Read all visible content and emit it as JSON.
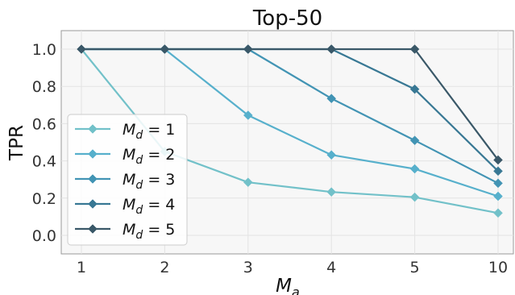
{
  "chart_data": {
    "type": "line",
    "title": "Top-50",
    "xlabel": "M_a",
    "ylabel": "TPR",
    "x_categories": [
      "1",
      "2",
      "3",
      "4",
      "5",
      "10"
    ],
    "ylim": [
      -0.1,
      1.1
    ],
    "yticks": [
      "0.0",
      "0.2",
      "0.4",
      "0.6",
      "0.8",
      "1.0"
    ],
    "grid": true,
    "legend_position": "lower-left",
    "series": [
      {
        "name": "M_d = 1",
        "legend_base": "M",
        "legend_sub": "d",
        "legend_rhs": " = 1",
        "color": "#72c1c9",
        "values": [
          1.0,
          0.45,
          0.285,
          0.233,
          0.205,
          0.12
        ]
      },
      {
        "name": "M_d = 2",
        "legend_base": "M",
        "legend_sub": "d",
        "legend_rhs": " = 2",
        "color": "#57b0cc",
        "values": [
          1.0,
          1.0,
          0.645,
          0.432,
          0.357,
          0.21
        ]
      },
      {
        "name": "M_d = 3",
        "legend_base": "M",
        "legend_sub": "d",
        "legend_rhs": " = 3",
        "color": "#4294b4",
        "values": [
          1.0,
          1.0,
          1.0,
          0.735,
          0.51,
          0.28
        ]
      },
      {
        "name": "M_d = 4",
        "legend_base": "M",
        "legend_sub": "d",
        "legend_rhs": " = 4",
        "color": "#387894",
        "values": [
          1.0,
          1.0,
          1.0,
          1.0,
          0.785,
          0.345
        ]
      },
      {
        "name": "M_d = 5",
        "legend_base": "M",
        "legend_sub": "d",
        "legend_rhs": " = 5",
        "color": "#3a5868",
        "values": [
          1.0,
          1.0,
          1.0,
          1.0,
          1.0,
          0.405
        ]
      }
    ]
  }
}
